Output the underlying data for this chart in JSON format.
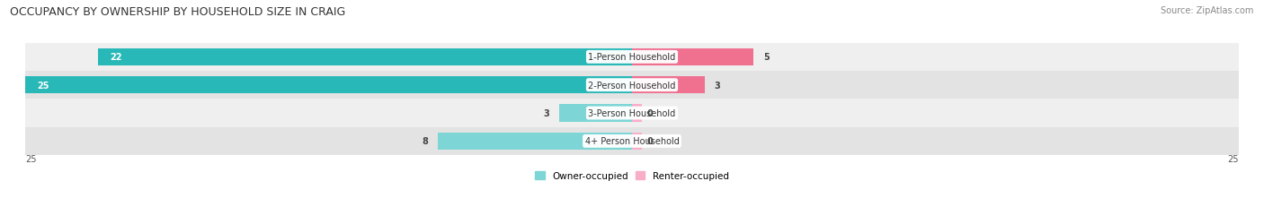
{
  "title": "OCCUPANCY BY OWNERSHIP BY HOUSEHOLD SIZE IN CRAIG",
  "source": "Source: ZipAtlas.com",
  "categories": [
    "1-Person Household",
    "2-Person Household",
    "3-Person Household",
    "4+ Person Household"
  ],
  "owner_values": [
    22,
    25,
    3,
    8
  ],
  "renter_values": [
    5,
    3,
    0,
    0
  ],
  "owner_color_dark": "#29b8b8",
  "owner_color_light": "#7dd5d5",
  "renter_color_dark": "#f07090",
  "renter_color_light": "#f8aec8",
  "row_bg_light": "#efefef",
  "row_bg_dark": "#e3e3e3",
  "x_max": 25,
  "bar_height": 0.62,
  "legend_owner": "Owner-occupied",
  "legend_renter": "Renter-occupied",
  "axis_label": "25",
  "title_fontsize": 9,
  "source_fontsize": 7,
  "label_fontsize": 7,
  "cat_fontsize": 7
}
